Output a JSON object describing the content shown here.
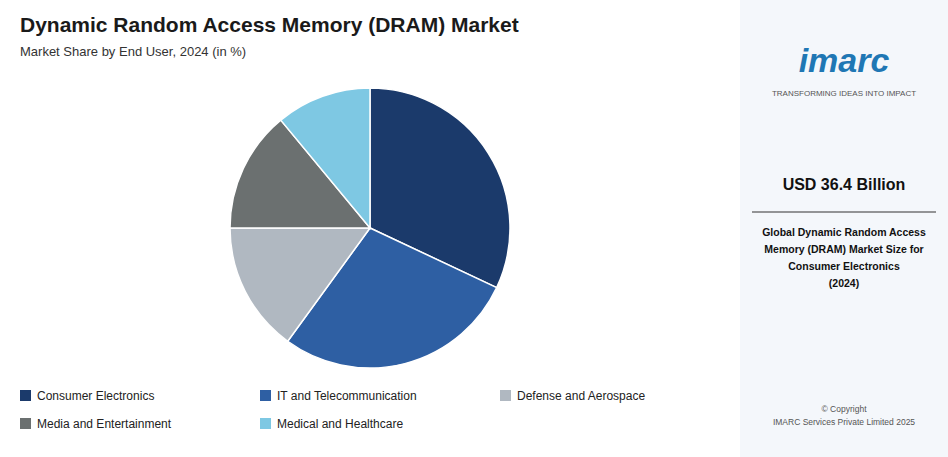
{
  "chart_data": {
    "type": "pie",
    "title": "Dynamic Random Access Memory (DRAM) Market",
    "subtitle": "Market Share by End User, 2024 (in %)",
    "categories": [
      "Consumer Electronics",
      "IT and Telecommunication",
      "Defense and Aerospace",
      "Media and Entertainment",
      "Medical and Healthcare"
    ],
    "values": [
      32,
      28,
      15,
      14,
      11
    ],
    "colors": [
      "#1b3a6b",
      "#2e5fa3",
      "#b0b8c1",
      "#6b7070",
      "#7ec8e3"
    ],
    "legend": "bottom",
    "annotations": [
      "imarc",
      "TRANSFORMING IDEAS INTO IMPACT",
      "USD 36.4 Billion",
      "Global Dynamic Random Access\nMemory (DRAM) Market Size for\nConsumer Electronics\n(2024)",
      "© Copyright\nIMARC Services Private Limited 2025"
    ]
  }
}
